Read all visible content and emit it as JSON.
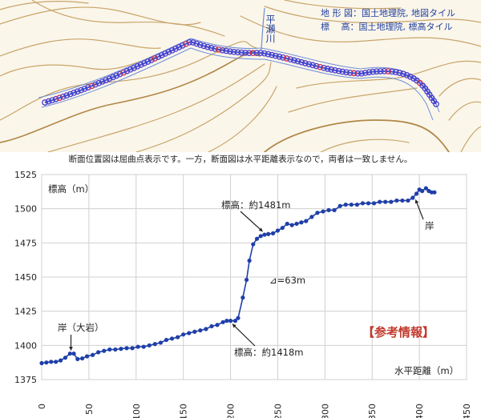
{
  "map": {
    "source_terrain": "地 形 図：国土地理院, 地図タイル",
    "source_elevation": "標　 高：国土地理院, 標高タイル",
    "river_label": "平瀬川"
  },
  "caption": "断面位置図は屈曲点表示です。一方，断面図は水平距離表示なので，両者は一致しません。",
  "chart_data": {
    "type": "line",
    "xlabel": "水平距離（m）",
    "ylabel": "標高（m）",
    "xlim": [
      0,
      450
    ],
    "ylim": [
      1375,
      1525
    ],
    "xticks": [
      0,
      50,
      100,
      150,
      200,
      250,
      300,
      350,
      400,
      450
    ],
    "yticks": [
      1375,
      1400,
      1425,
      1450,
      1475,
      1500,
      1525
    ],
    "grid": true,
    "series": [
      {
        "points": [
          [
            0,
            1387
          ],
          [
            5,
            1387.5
          ],
          [
            10,
            1388
          ],
          [
            15,
            1388
          ],
          [
            20,
            1389
          ],
          [
            25,
            1391
          ],
          [
            30,
            1394
          ],
          [
            34,
            1394
          ],
          [
            38,
            1390
          ],
          [
            43,
            1390.5
          ],
          [
            48,
            1392
          ],
          [
            54,
            1393
          ],
          [
            60,
            1395
          ],
          [
            66,
            1396
          ],
          [
            72,
            1397
          ],
          [
            78,
            1397
          ],
          [
            84,
            1397.5
          ],
          [
            90,
            1398
          ],
          [
            96,
            1398
          ],
          [
            102,
            1399
          ],
          [
            108,
            1399
          ],
          [
            114,
            1400
          ],
          [
            120,
            1401
          ],
          [
            126,
            1402
          ],
          [
            132,
            1404
          ],
          [
            138,
            1405
          ],
          [
            144,
            1406
          ],
          [
            150,
            1408
          ],
          [
            156,
            1409
          ],
          [
            162,
            1410
          ],
          [
            168,
            1411
          ],
          [
            174,
            1412
          ],
          [
            180,
            1414
          ],
          [
            186,
            1415
          ],
          [
            192,
            1417
          ],
          [
            196,
            1418
          ],
          [
            200,
            1418
          ],
          [
            205,
            1418
          ],
          [
            208,
            1420
          ],
          [
            213,
            1435
          ],
          [
            217,
            1448
          ],
          [
            220,
            1462
          ],
          [
            224,
            1474
          ],
          [
            228,
            1478
          ],
          [
            232,
            1480
          ],
          [
            236,
            1481
          ],
          [
            240,
            1481.5
          ],
          [
            245,
            1482
          ],
          [
            250,
            1484
          ],
          [
            255,
            1486
          ],
          [
            260,
            1489
          ],
          [
            265,
            1488
          ],
          [
            270,
            1489
          ],
          [
            275,
            1490
          ],
          [
            280,
            1491
          ],
          [
            286,
            1494
          ],
          [
            292,
            1497
          ],
          [
            298,
            1498
          ],
          [
            304,
            1499
          ],
          [
            310,
            1499
          ],
          [
            316,
            1502
          ],
          [
            322,
            1503
          ],
          [
            328,
            1503
          ],
          [
            334,
            1503
          ],
          [
            340,
            1504
          ],
          [
            346,
            1504
          ],
          [
            352,
            1504
          ],
          [
            358,
            1505
          ],
          [
            364,
            1505
          ],
          [
            370,
            1505
          ],
          [
            376,
            1506
          ],
          [
            382,
            1506
          ],
          [
            388,
            1506
          ],
          [
            393,
            1508
          ],
          [
            397,
            1511
          ],
          [
            400,
            1514
          ],
          [
            403,
            1513
          ],
          [
            407,
            1515
          ],
          [
            410,
            1513
          ],
          [
            413,
            1512
          ],
          [
            416,
            1512
          ]
        ],
        "color": "#1f3fa8"
      }
    ],
    "annotations": {
      "bank_big_rock": "岸（大岩）",
      "elev_1418": "標高：約1418m",
      "elev_1481": "標高：約1481m",
      "delta_h": "⊿=63m",
      "bank": "岸",
      "reference": "【参考情報】"
    }
  }
}
